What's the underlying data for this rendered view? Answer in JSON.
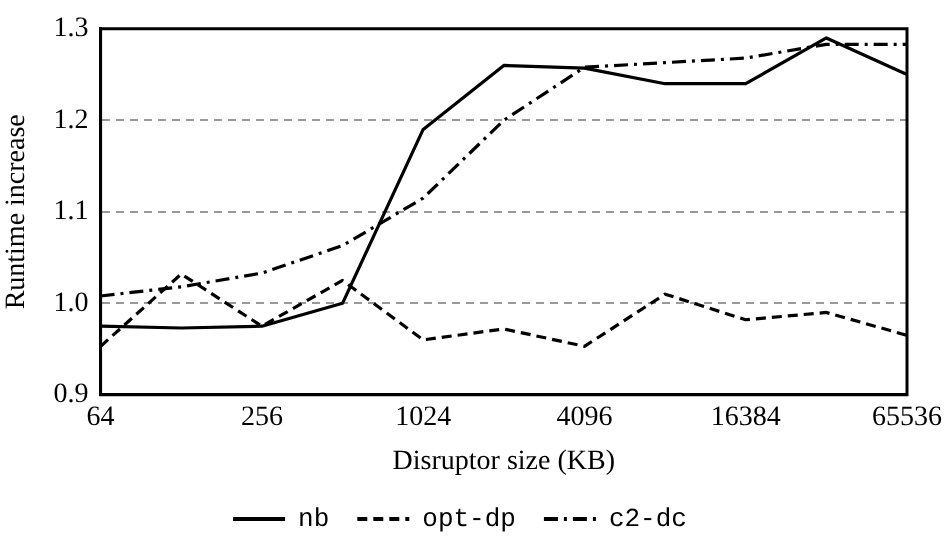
{
  "chart_data": {
    "type": "line",
    "xlabel": "Disruptor size (KB)",
    "ylabel": "Runtime increase",
    "x": [
      64,
      128,
      256,
      512,
      1024,
      2048,
      4096,
      8192,
      16384,
      32768,
      65536
    ],
    "xlim": [
      64,
      65536
    ],
    "xticks": [
      64,
      256,
      1024,
      4096,
      16384,
      65536
    ],
    "ylim": [
      0.9,
      1.3
    ],
    "yticks": [
      0.9,
      {
        "value": 1,
        "label": "1.0"
      },
      1.1,
      1.2,
      1.3
    ],
    "log": "x",
    "grid": "y",
    "legend": "bottom",
    "marker": "none",
    "series": [
      {
        "name": "nb",
        "color": "#000000",
        "line_style": "solid",
        "values": [
          0.975,
          0.973,
          0.975,
          1.0,
          1.19,
          1.26,
          1.257,
          1.24,
          1.24,
          1.29,
          1.25
        ]
      },
      {
        "name": "opt-dp",
        "color": "#000000",
        "line_style": "dashed",
        "values": [
          0.953,
          1.032,
          0.975,
          1.025,
          0.96,
          0.972,
          0.953,
          1.01,
          0.982,
          0.99,
          0.965
        ]
      },
      {
        "name": "c2-dc",
        "color": "#000000",
        "line_style": "dashdot",
        "values": [
          1.008,
          1.018,
          1.033,
          1.063,
          1.115,
          1.2,
          1.258,
          1.263,
          1.268,
          1.283,
          1.283
        ]
      }
    ]
  }
}
